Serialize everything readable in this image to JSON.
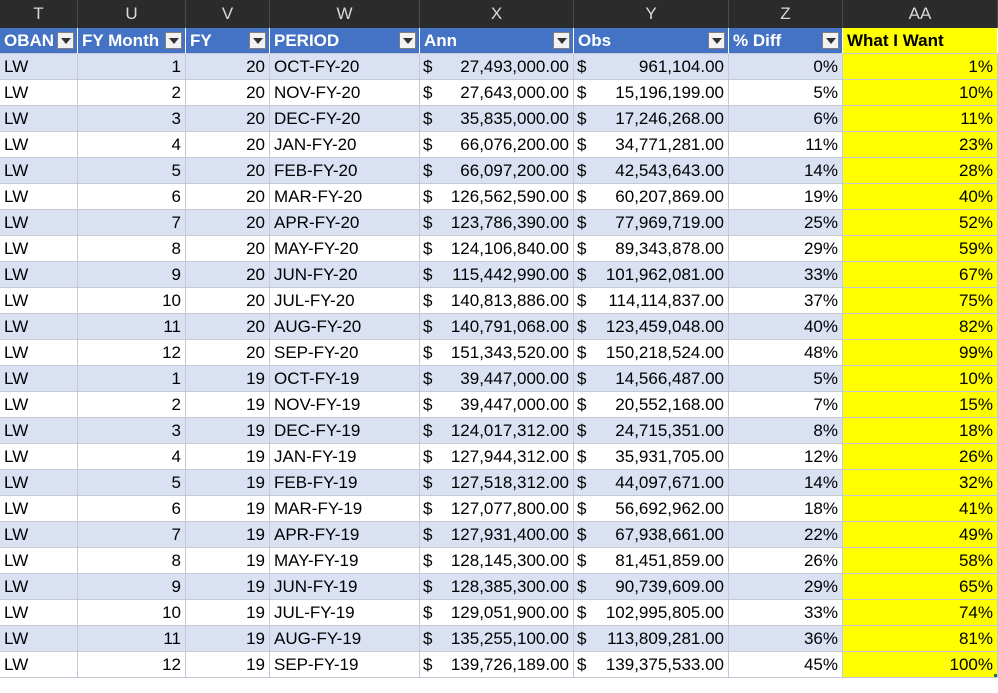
{
  "column_letters": [
    "T",
    "U",
    "V",
    "W",
    "X",
    "Y",
    "Z",
    "AA"
  ],
  "headers": [
    "OBAN",
    "FY Month",
    "FY",
    "PERIOD",
    "Ann",
    "Obs",
    "% Diff",
    "What I Want"
  ],
  "rows": [
    {
      "oban": "LW",
      "month": "1",
      "fy": "20",
      "period": "OCT-FY-20",
      "ann": "27,493,000.00",
      "obs": "961,104.00",
      "diff": "0%",
      "want": "1%"
    },
    {
      "oban": "LW",
      "month": "2",
      "fy": "20",
      "period": "NOV-FY-20",
      "ann": "27,643,000.00",
      "obs": "15,196,199.00",
      "diff": "5%",
      "want": "10%"
    },
    {
      "oban": "LW",
      "month": "3",
      "fy": "20",
      "period": "DEC-FY-20",
      "ann": "35,835,000.00",
      "obs": "17,246,268.00",
      "diff": "6%",
      "want": "11%"
    },
    {
      "oban": "LW",
      "month": "4",
      "fy": "20",
      "period": "JAN-FY-20",
      "ann": "66,076,200.00",
      "obs": "34,771,281.00",
      "diff": "11%",
      "want": "23%"
    },
    {
      "oban": "LW",
      "month": "5",
      "fy": "20",
      "period": "FEB-FY-20",
      "ann": "66,097,200.00",
      "obs": "42,543,643.00",
      "diff": "14%",
      "want": "28%"
    },
    {
      "oban": "LW",
      "month": "6",
      "fy": "20",
      "period": "MAR-FY-20",
      "ann": "126,562,590.00",
      "obs": "60,207,869.00",
      "diff": "19%",
      "want": "40%"
    },
    {
      "oban": "LW",
      "month": "7",
      "fy": "20",
      "period": "APR-FY-20",
      "ann": "123,786,390.00",
      "obs": "77,969,719.00",
      "diff": "25%",
      "want": "52%"
    },
    {
      "oban": "LW",
      "month": "8",
      "fy": "20",
      "period": "MAY-FY-20",
      "ann": "124,106,840.00",
      "obs": "89,343,878.00",
      "diff": "29%",
      "want": "59%"
    },
    {
      "oban": "LW",
      "month": "9",
      "fy": "20",
      "period": "JUN-FY-20",
      "ann": "115,442,990.00",
      "obs": "101,962,081.00",
      "diff": "33%",
      "want": "67%"
    },
    {
      "oban": "LW",
      "month": "10",
      "fy": "20",
      "period": "JUL-FY-20",
      "ann": "140,813,886.00",
      "obs": "114,114,837.00",
      "diff": "37%",
      "want": "75%"
    },
    {
      "oban": "LW",
      "month": "11",
      "fy": "20",
      "period": "AUG-FY-20",
      "ann": "140,791,068.00",
      "obs": "123,459,048.00",
      "diff": "40%",
      "want": "82%"
    },
    {
      "oban": "LW",
      "month": "12",
      "fy": "20",
      "period": "SEP-FY-20",
      "ann": "151,343,520.00",
      "obs": "150,218,524.00",
      "diff": "48%",
      "want": "99%"
    },
    {
      "oban": "LW",
      "month": "1",
      "fy": "19",
      "period": "OCT-FY-19",
      "ann": "39,447,000.00",
      "obs": "14,566,487.00",
      "diff": "5%",
      "want": "10%"
    },
    {
      "oban": "LW",
      "month": "2",
      "fy": "19",
      "period": "NOV-FY-19",
      "ann": "39,447,000.00",
      "obs": "20,552,168.00",
      "diff": "7%",
      "want": "15%"
    },
    {
      "oban": "LW",
      "month": "3",
      "fy": "19",
      "period": "DEC-FY-19",
      "ann": "124,017,312.00",
      "obs": "24,715,351.00",
      "diff": "8%",
      "want": "18%"
    },
    {
      "oban": "LW",
      "month": "4",
      "fy": "19",
      "period": "JAN-FY-19",
      "ann": "127,944,312.00",
      "obs": "35,931,705.00",
      "diff": "12%",
      "want": "26%"
    },
    {
      "oban": "LW",
      "month": "5",
      "fy": "19",
      "period": "FEB-FY-19",
      "ann": "127,518,312.00",
      "obs": "44,097,671.00",
      "diff": "14%",
      "want": "32%"
    },
    {
      "oban": "LW",
      "month": "6",
      "fy": "19",
      "period": "MAR-FY-19",
      "ann": "127,077,800.00",
      "obs": "56,692,962.00",
      "diff": "18%",
      "want": "41%"
    },
    {
      "oban": "LW",
      "month": "7",
      "fy": "19",
      "period": "APR-FY-19",
      "ann": "127,931,400.00",
      "obs": "67,938,661.00",
      "diff": "22%",
      "want": "49%"
    },
    {
      "oban": "LW",
      "month": "8",
      "fy": "19",
      "period": "MAY-FY-19",
      "ann": "128,145,300.00",
      "obs": "81,451,859.00",
      "diff": "26%",
      "want": "58%"
    },
    {
      "oban": "LW",
      "month": "9",
      "fy": "19",
      "period": "JUN-FY-19",
      "ann": "128,385,300.00",
      "obs": "90,739,609.00",
      "diff": "29%",
      "want": "65%"
    },
    {
      "oban": "LW",
      "month": "10",
      "fy": "19",
      "period": "JUL-FY-19",
      "ann": "129,051,900.00",
      "obs": "102,995,805.00",
      "diff": "33%",
      "want": "74%"
    },
    {
      "oban": "LW",
      "month": "11",
      "fy": "19",
      "period": "AUG-FY-19",
      "ann": "135,255,100.00",
      "obs": "113,809,281.00",
      "diff": "36%",
      "want": "81%"
    },
    {
      "oban": "LW",
      "month": "12",
      "fy": "19",
      "period": "SEP-FY-19",
      "ann": "139,726,189.00",
      "obs": "139,375,533.00",
      "diff": "45%",
      "want": "100%"
    }
  ],
  "currency_symbol": "$",
  "colors": {
    "header_blue": "#4472c4",
    "band": "#d9e1f2",
    "highlight": "#ffff00",
    "col_header_bg": "#2b2b2b"
  }
}
